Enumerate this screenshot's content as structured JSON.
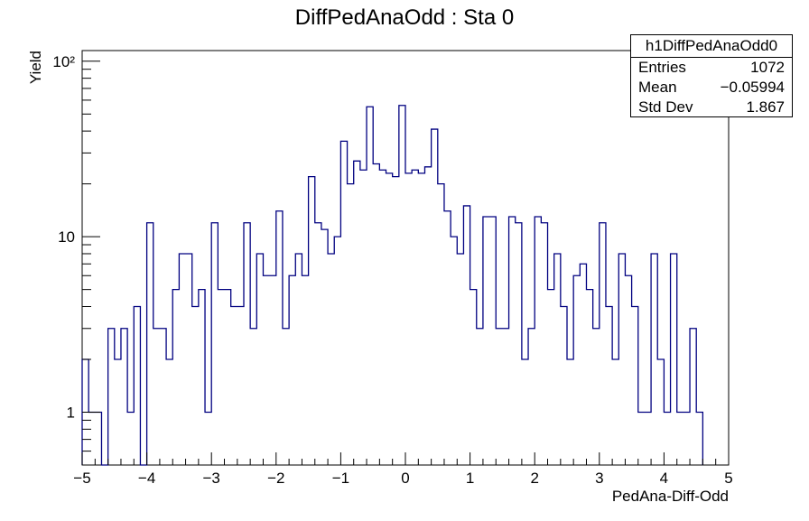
{
  "chart_data": {
    "type": "histogram",
    "title": "DiffPedAnaOdd : Sta 0",
    "xlabel": "PedAna-Diff-Odd",
    "ylabel": "Yield",
    "xlim": [
      -5,
      5
    ],
    "ylim": [
      0.5,
      115
    ],
    "yscale": "log",
    "grid": false,
    "line_color": "#000080",
    "bin_width": 0.1,
    "bin_low_edges_start": -5,
    "x_ticks": [
      "−5",
      "−4",
      "−3",
      "−2",
      "−1",
      "0",
      "1",
      "2",
      "3",
      "4",
      "5"
    ],
    "y_ticks": [
      {
        "value": 1,
        "label": "1"
      },
      {
        "value": 10,
        "label": "10"
      },
      {
        "value": 100,
        "label": "10²"
      }
    ],
    "values": [
      2,
      1,
      1,
      0,
      3,
      2,
      3,
      1,
      4,
      0,
      12,
      3,
      3,
      2,
      5,
      8,
      8,
      4,
      5,
      1,
      12,
      5,
      5,
      4,
      4,
      12,
      3,
      8,
      6,
      6,
      14,
      3,
      6,
      8,
      6,
      22,
      12,
      11,
      8,
      10,
      35,
      20,
      27,
      24,
      55,
      26,
      24,
      23,
      22,
      56,
      23,
      24,
      23,
      25,
      41,
      20,
      14,
      10,
      8,
      15,
      5,
      3,
      13,
      13,
      3,
      3,
      13,
      12,
      2,
      3,
      13,
      12,
      5,
      8,
      4,
      2,
      6,
      7,
      5,
      3,
      12,
      4,
      2,
      8,
      6,
      4,
      1,
      1,
      8,
      2,
      1,
      8,
      1,
      1,
      3,
      1
    ]
  },
  "stats_box": {
    "name": "h1DiffPedAnaOdd0",
    "entries_label": "Entries",
    "entries_value": "1072",
    "mean_label": "Mean",
    "mean_value": "−0.05994",
    "stddev_label": "Std Dev",
    "stddev_value": "1.867"
  }
}
